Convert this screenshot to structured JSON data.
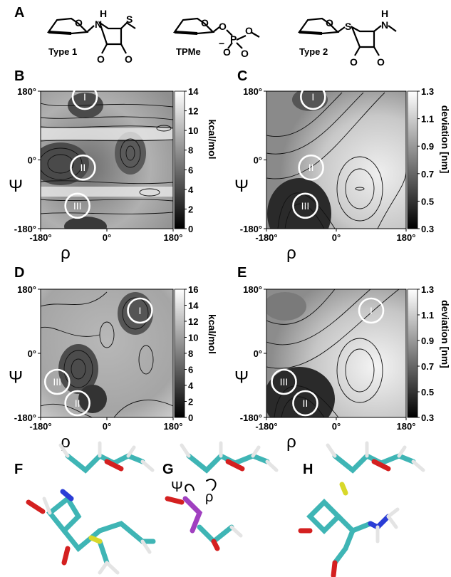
{
  "panel_labels": {
    "A": "A",
    "B": "B",
    "C": "C",
    "D": "D",
    "E": "E",
    "F": "F",
    "G": "G",
    "H": "H"
  },
  "structures": {
    "type1": {
      "label": "Type 1",
      "atoms": {
        "O_ring": "O",
        "N": "N",
        "H": "H",
        "S": "S",
        "O1": "O",
        "O2": "O"
      }
    },
    "tpme": {
      "label": "TPMe",
      "atoms": {
        "O_ring": "O",
        "O_bridge": "O",
        "P": "P",
        "O_methyl": "O",
        "O_minus": "O",
        "minus": "−",
        "O_down": "O"
      }
    },
    "type2": {
      "label": "Type 2",
      "atoms": {
        "O_ring": "O",
        "S": "S",
        "N": "N",
        "H": "H",
        "O1": "O",
        "O2": "O"
      }
    }
  },
  "chart_data": [
    {
      "panel": "B",
      "type": "heatmap",
      "xlabel": "ρ",
      "ylabel": "Ψ",
      "xticks": [
        "-180°",
        "0°",
        "180°"
      ],
      "yticks": [
        "180°",
        "0°",
        "-180°"
      ],
      "xlim": [
        -180,
        180
      ],
      "ylim": [
        -180,
        180
      ],
      "colorbar": {
        "label": "kcal/mol",
        "ticks": [
          "14",
          "12",
          "10",
          "8",
          "6",
          "4",
          "2",
          "0"
        ],
        "range": [
          0,
          14
        ]
      },
      "markers": [
        {
          "label": "I",
          "x": -60,
          "y": 165,
          "color": "#ffffff"
        },
        {
          "label": "II",
          "x": -65,
          "y": -20,
          "color": "#ffffff"
        },
        {
          "label": "III",
          "x": -80,
          "y": -120,
          "color": "#ffffff"
        }
      ]
    },
    {
      "panel": "C",
      "type": "heatmap",
      "xlabel": "ρ",
      "ylabel": "Ψ",
      "xticks": [
        "-180°",
        "0°",
        "180°"
      ],
      "yticks": [
        "180°",
        "0°",
        "-180°"
      ],
      "xlim": [
        -180,
        180
      ],
      "ylim": [
        -180,
        180
      ],
      "colorbar": {
        "label": "deviation [nm]",
        "ticks": [
          "1.3",
          "1.1",
          "0.9",
          "0.7",
          "0.5",
          "0.3"
        ],
        "range": [
          0.3,
          1.3
        ]
      },
      "markers": [
        {
          "label": "I",
          "x": -60,
          "y": 165,
          "color": "#ffffff"
        },
        {
          "label": "II",
          "x": -65,
          "y": -20,
          "color": "#ffffff"
        },
        {
          "label": "III",
          "x": -80,
          "y": -120,
          "color": "#ffffff"
        }
      ]
    },
    {
      "panel": "D",
      "type": "heatmap",
      "xlabel": "ρ",
      "ylabel": "Ψ",
      "xticks": [
        "-180°",
        "0°",
        "180°"
      ],
      "yticks": [
        "180°",
        "0°",
        "-180°"
      ],
      "xlim": [
        -180,
        180
      ],
      "ylim": [
        -180,
        180
      ],
      "colorbar": {
        "label": "kcal/mol",
        "ticks": [
          "16",
          "14",
          "12",
          "10",
          "8",
          "6",
          "4",
          "2",
          "0"
        ],
        "range": [
          0,
          16
        ]
      },
      "markers": [
        {
          "label": "I",
          "x": 90,
          "y": 120,
          "color": "#ffffff"
        },
        {
          "label": "III",
          "x": -135,
          "y": -80,
          "color": "#ffffff"
        },
        {
          "label": "II",
          "x": -80,
          "y": -140,
          "color": "#ffffff"
        }
      ]
    },
    {
      "panel": "E",
      "type": "heatmap",
      "xlabel": "ρ",
      "ylabel": "Ψ",
      "xticks": [
        "-180°",
        "0°",
        "180°"
      ],
      "yticks": [
        "180°",
        "0°",
        "-180°"
      ],
      "xlim": [
        -180,
        180
      ],
      "ylim": [
        -180,
        180
      ],
      "colorbar": {
        "label": "deviation [nm]",
        "ticks": [
          "1.3",
          "1.1",
          "0.9",
          "0.7",
          "0.5",
          "0.3"
        ],
        "range": [
          0.3,
          1.3
        ]
      },
      "markers": [
        {
          "label": "I",
          "x": 90,
          "y": 120,
          "color": "#ffffff"
        },
        {
          "label": "III",
          "x": -135,
          "y": -80,
          "color": "#ffffff"
        },
        {
          "label": "II",
          "x": -80,
          "y": -140,
          "color": "#ffffff"
        }
      ]
    }
  ],
  "bottom_panels": {
    "G": {
      "psi_symbol": "Ψ",
      "rho_symbol": "ρ"
    }
  },
  "colors": {
    "carbon": "#3fb5b5",
    "oxygen": "#d42020",
    "nitrogen": "#2a3dd6",
    "sulfur": "#d8d82a",
    "phosphorus": "#a040c0",
    "hydrogen": "#e4e4e4"
  }
}
